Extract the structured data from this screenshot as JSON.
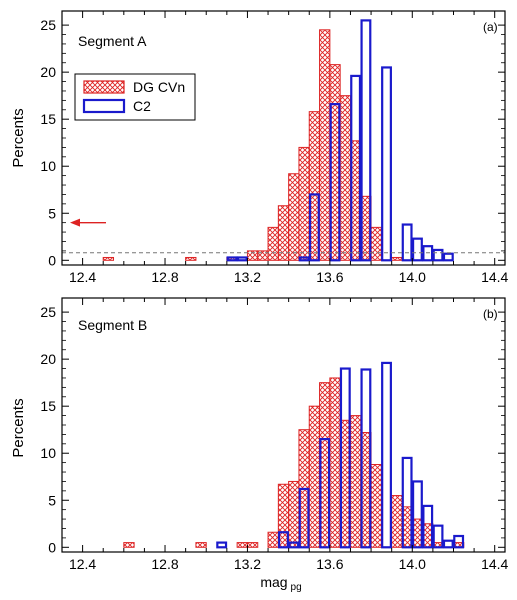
{
  "chart_data": [
    {
      "type": "bar",
      "panel_label": "(a)",
      "segment_label": "Segment A",
      "ylabel": "Percents",
      "xlabel": "",
      "xlim": [
        12.3,
        14.45
      ],
      "ylim": [
        -0.5,
        26.5
      ],
      "bin_width": 0.05,
      "xticks": [
        "12.4",
        "12.8",
        "13.2",
        "13.6",
        "14.0",
        "14.4"
      ],
      "yticks": [
        "0",
        "5",
        "10",
        "15",
        "20",
        "25"
      ],
      "reference_line_y": 0.8,
      "arrow_y": 4.0,
      "legend": {
        "position": "upper-left",
        "entries": [
          "DG CVn",
          "C2"
        ]
      },
      "series": [
        {
          "name": "DG CVn",
          "style": "hatched",
          "color": "#dd2222",
          "bins": [
            [
              12.5,
              0.3
            ],
            [
              12.9,
              0.3
            ],
            [
              13.1,
              0.3
            ],
            [
              13.2,
              1.0
            ],
            [
              13.25,
              1.0
            ],
            [
              13.3,
              3.5
            ],
            [
              13.35,
              5.8
            ],
            [
              13.4,
              9.2
            ],
            [
              13.45,
              12.0
            ],
            [
              13.5,
              15.8
            ],
            [
              13.55,
              24.5
            ],
            [
              13.6,
              20.8
            ],
            [
              13.65,
              17.5
            ],
            [
              13.7,
              12.7
            ],
            [
              13.75,
              6.8
            ],
            [
              13.8,
              3.5
            ],
            [
              13.9,
              0.3
            ]
          ]
        },
        {
          "name": "C2",
          "style": "outline",
          "color": "#1a1acc",
          "bins": [
            [
              13.1,
              0.3
            ],
            [
              13.15,
              0.3
            ],
            [
              13.45,
              0.3
            ],
            [
              13.5,
              7.0
            ],
            [
              13.6,
              16.6
            ],
            [
              13.7,
              19.6
            ],
            [
              13.75,
              25.5
            ],
            [
              13.85,
              20.5
            ],
            [
              13.95,
              3.8
            ],
            [
              14.0,
              2.3
            ],
            [
              14.05,
              1.5
            ],
            [
              14.1,
              1.1
            ],
            [
              14.15,
              0.7
            ]
          ]
        }
      ]
    },
    {
      "type": "bar",
      "panel_label": "(b)",
      "segment_label": "Segment B",
      "ylabel": "Percents",
      "xlabel": "mag",
      "xlabel_sub": "pg",
      "xlim": [
        12.3,
        14.45
      ],
      "ylim": [
        -0.5,
        26.5
      ],
      "bin_width": 0.05,
      "xticks": [
        "12.4",
        "12.8",
        "13.2",
        "13.6",
        "14.0",
        "14.4"
      ],
      "yticks": [
        "0",
        "5",
        "10",
        "15",
        "20",
        "25"
      ],
      "series": [
        {
          "name": "DG CVn",
          "style": "hatched",
          "color": "#dd2222",
          "bins": [
            [
              12.6,
              0.5
            ],
            [
              12.95,
              0.5
            ],
            [
              13.15,
              0.5
            ],
            [
              13.2,
              0.5
            ],
            [
              13.3,
              1.6
            ],
            [
              13.35,
              6.7
            ],
            [
              13.4,
              7.0
            ],
            [
              13.45,
              12.5
            ],
            [
              13.5,
              15.0
            ],
            [
              13.55,
              17.5
            ],
            [
              13.6,
              18.0
            ],
            [
              13.65,
              13.5
            ],
            [
              13.7,
              14.0
            ],
            [
              13.75,
              12.2
            ],
            [
              13.8,
              8.8
            ],
            [
              13.9,
              5.5
            ],
            [
              13.95,
              4.3
            ],
            [
              14.0,
              3.0
            ],
            [
              14.05,
              2.5
            ],
            [
              14.1,
              0.5
            ],
            [
              14.2,
              0.5
            ]
          ]
        },
        {
          "name": "C2",
          "style": "outline",
          "color": "#1a1acc",
          "bins": [
            [
              13.05,
              0.5
            ],
            [
              13.35,
              1.6
            ],
            [
              13.4,
              0.5
            ],
            [
              13.45,
              6.2
            ],
            [
              13.55,
              11.5
            ],
            [
              13.65,
              19.0
            ],
            [
              13.75,
              18.9
            ],
            [
              13.85,
              19.6
            ],
            [
              13.95,
              9.5
            ],
            [
              14.0,
              7.0
            ],
            [
              14.05,
              4.4
            ],
            [
              14.1,
              2.3
            ],
            [
              14.15,
              0.7
            ],
            [
              14.2,
              1.2
            ]
          ]
        }
      ]
    }
  ],
  "colors": {
    "hatch": "#dd2222",
    "outline": "#1a1acc",
    "axis": "#000000",
    "dashed": "#777777"
  }
}
